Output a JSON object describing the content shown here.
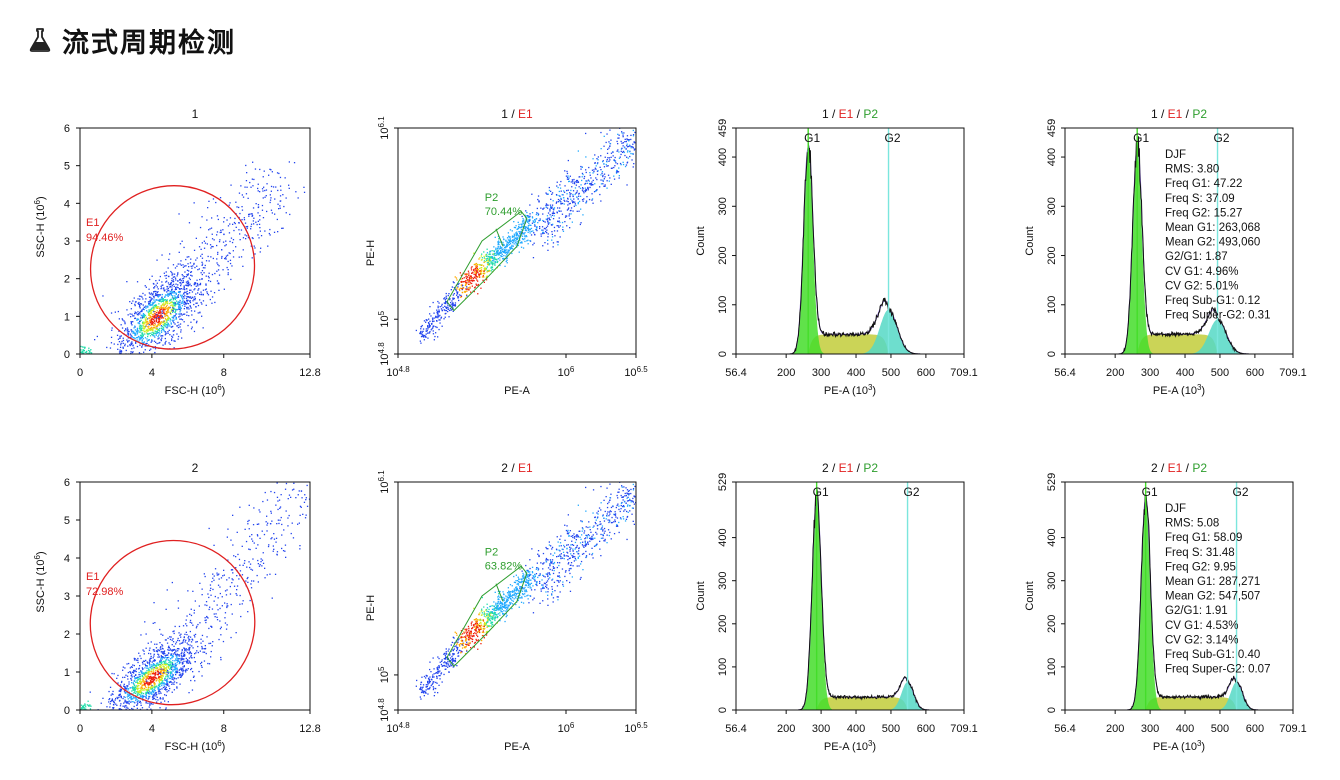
{
  "page": {
    "title": "流式周期检测",
    "icon": "flask-icon"
  },
  "colors": {
    "gate_e1": "#e02020",
    "gate_p2": "#2e9e2e",
    "g1_fill": "#44dd2a",
    "s_fill": "#c2cc3a",
    "g2_fill": "#55d8c6",
    "g2_line": "#7be6dd",
    "trace": "#111111",
    "fit": "#7d5ad0"
  },
  "chart_data": [
    {
      "type": "scatter",
      "panel": "scatter-fsc-ssc",
      "row": 0,
      "title": "1",
      "xlabel": "FSC-H",
      "xunit": "(10",
      "xexp": "6",
      "xclose": ")",
      "ylabel": "SSC-H",
      "yunit": "(10",
      "yexp": "6",
      "yclose": ")",
      "xlim": [
        0,
        12.8
      ],
      "ylim": [
        0,
        6
      ],
      "xticks": [
        "0",
        "4",
        "8",
        "12.8"
      ],
      "yticks": [
        "0",
        "1",
        "2",
        "3",
        "4",
        "5",
        "6"
      ],
      "cluster": {
        "center": [
          4.3,
          1.0
        ],
        "spread": [
          1.6,
          0.7
        ],
        "tail_to": [
          11,
          4.5
        ]
      },
      "gate": {
        "name": "E1",
        "percent": "94.46%",
        "shape": "ellipse",
        "center": [
          5.15,
          2.3
        ],
        "rx": 4.6,
        "ry": 2.15
      }
    },
    {
      "type": "scatter",
      "panel": "scatter-pea-peh",
      "row": 0,
      "title_parts": [
        "1",
        "E1"
      ],
      "xlabel": "PE-A",
      "ylabel": "PE-H",
      "scale": "log",
      "xlim": [
        4.8,
        6.5
      ],
      "ylim": [
        4.8,
        6.1
      ],
      "xticks": [
        {
          "base": "10",
          "exp": "4.8"
        },
        {
          "base": "10",
          "exp": "6"
        },
        {
          "base": "10",
          "exp": "6.5"
        }
      ],
      "yticks": [
        {
          "base": "10",
          "exp": "4.8"
        },
        {
          "base": "10",
          "exp": "5"
        },
        {
          "base": "10",
          "exp": "6.1"
        }
      ],
      "gate": {
        "name": "P2",
        "percent": "70.44%",
        "shape": "polygon"
      }
    },
    {
      "type": "histogram",
      "panel": "histogram",
      "row": 0,
      "title_parts": [
        "1",
        "E1",
        "P2"
      ],
      "xlabel": "PE-A",
      "xunit": "(10",
      "xexp": "3",
      "xclose": ")",
      "ylabel": "Count",
      "xlim": [
        56.4,
        709.1
      ],
      "ylim": [
        0,
        459
      ],
      "xticks": [
        "56.4",
        "200",
        "300",
        "400",
        "500",
        "600",
        "709.1"
      ],
      "yticks": [
        "0",
        "100",
        "200",
        "300",
        "400",
        "459"
      ],
      "markers": [
        "G1",
        "G2"
      ],
      "g1_mean": 263.068,
      "g2_mean": 493.06,
      "g1_peak": 420,
      "s_level": 40,
      "g2_peak": 90,
      "cv_g1": 4.96,
      "cv_g2": 5.01
    },
    {
      "type": "histogram",
      "panel": "histogram-model",
      "row": 0,
      "title_parts": [
        "1",
        "E1",
        "P2"
      ],
      "xlabel": "PE-A",
      "xunit": "(10",
      "xexp": "3",
      "xclose": ")",
      "ylabel": "Count",
      "xlim": [
        56.4,
        709.1
      ],
      "ylim": [
        0,
        459
      ],
      "xticks": [
        "56.4",
        "200",
        "300",
        "400",
        "500",
        "600",
        "709.1"
      ],
      "yticks": [
        "0",
        "100",
        "200",
        "300",
        "400",
        "459"
      ],
      "markers": [
        "G1",
        "G2"
      ],
      "g1_mean": 263.068,
      "g2_mean": 493.06,
      "g1_peak": 420,
      "s_level": 40,
      "g2_peak": 70,
      "cv_g1": 4.96,
      "cv_g2": 5.01,
      "stats": [
        "DJF",
        "RMS: 3.80",
        "Freq G1: 47.22",
        "Freq S: 37.09",
        "Freq G2: 15.27",
        "Mean G1: 263,068",
        "Mean G2: 493,060",
        "G2/G1: 1.87",
        "CV G1: 4.96%",
        "CV G2: 5.01%",
        "Freq Sub-G1: 0.12",
        "Freq Super-G2: 0.31"
      ]
    },
    {
      "type": "scatter",
      "panel": "scatter-fsc-ssc",
      "row": 1,
      "title": "2",
      "xlabel": "FSC-H",
      "xunit": "(10",
      "xexp": "6",
      "xclose": ")",
      "ylabel": "SSC-H",
      "yunit": "(10",
      "yexp": "6",
      "yclose": ")",
      "xlim": [
        0,
        12.8
      ],
      "ylim": [
        0,
        6
      ],
      "xticks": [
        "0",
        "4",
        "8",
        "12.8"
      ],
      "yticks": [
        "0",
        "1",
        "2",
        "3",
        "4",
        "5",
        "6"
      ],
      "cluster": {
        "center": [
          4.0,
          0.85
        ],
        "spread": [
          1.7,
          0.55
        ],
        "tail_to": [
          12.5,
          5.8
        ]
      },
      "gate": {
        "name": "E1",
        "percent": "72.98%",
        "shape": "ellipse",
        "center": [
          5.15,
          2.3
        ],
        "rx": 4.6,
        "ry": 2.15
      }
    },
    {
      "type": "scatter",
      "panel": "scatter-pea-peh",
      "row": 1,
      "title_parts": [
        "2",
        "E1"
      ],
      "xlabel": "PE-A",
      "ylabel": "PE-H",
      "scale": "log",
      "xlim": [
        4.8,
        6.5
      ],
      "ylim": [
        4.8,
        6.1
      ],
      "xticks": [
        {
          "base": "10",
          "exp": "4.8"
        },
        {
          "base": "10",
          "exp": "6"
        },
        {
          "base": "10",
          "exp": "6.5"
        }
      ],
      "yticks": [
        {
          "base": "10",
          "exp": "4.8"
        },
        {
          "base": "10",
          "exp": "5"
        },
        {
          "base": "10",
          "exp": "6.1"
        }
      ],
      "gate": {
        "name": "P2",
        "percent": "63.82%",
        "shape": "polygon"
      }
    },
    {
      "type": "histogram",
      "panel": "histogram",
      "row": 1,
      "title_parts": [
        "2",
        "E1",
        "P2"
      ],
      "xlabel": "PE-A",
      "xunit": "(10",
      "xexp": "3",
      "xclose": ")",
      "ylabel": "Count",
      "xlim": [
        56.4,
        709.1
      ],
      "ylim": [
        0,
        529
      ],
      "xticks": [
        "56.4",
        "200",
        "300",
        "400",
        "500",
        "600",
        "709.1"
      ],
      "yticks": [
        "0",
        "100",
        "200",
        "300",
        "400",
        "529"
      ],
      "markers": [
        "G1",
        "G2"
      ],
      "g1_mean": 287.271,
      "g2_mean": 547.507,
      "g1_peak": 490,
      "s_level": 30,
      "g2_peak": 65,
      "cv_g1": 4.53,
      "cv_g2": 3.14
    },
    {
      "type": "histogram",
      "panel": "histogram-model",
      "row": 1,
      "title_parts": [
        "2",
        "E1",
        "P2"
      ],
      "xlabel": "PE-A",
      "xunit": "(10",
      "xexp": "3",
      "xclose": ")",
      "ylabel": "Count",
      "xlim": [
        56.4,
        709.1
      ],
      "ylim": [
        0,
        529
      ],
      "xticks": [
        "56.4",
        "200",
        "300",
        "400",
        "500",
        "600",
        "709.1"
      ],
      "yticks": [
        "0",
        "100",
        "200",
        "300",
        "400",
        "529"
      ],
      "markers": [
        "G1",
        "G2"
      ],
      "g1_mean": 287.271,
      "g2_mean": 547.507,
      "g1_peak": 490,
      "s_level": 30,
      "g2_peak": 65,
      "cv_g1": 4.53,
      "cv_g2": 3.14,
      "stats": [
        "DJF",
        "RMS: 5.08",
        "Freq G1: 58.09",
        "Freq S: 31.48",
        "Freq G2: 9.95",
        "Mean G1: 287,271",
        "Mean G2: 547,507",
        "G2/G1: 1.91",
        "CV G1: 4.53%",
        "CV G2: 3.14%",
        "Freq Sub-G1: 0.40",
        "Freq Super-G2: 0.07"
      ]
    }
  ]
}
